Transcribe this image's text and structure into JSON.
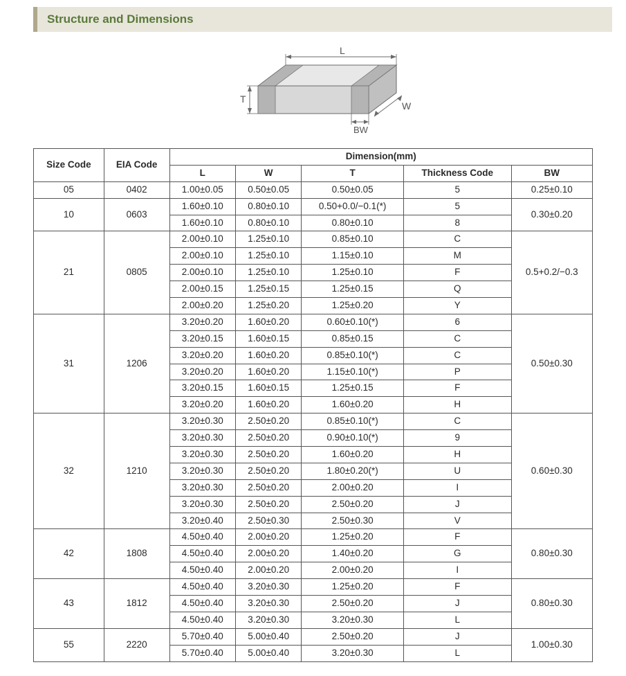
{
  "section_title": "Structure and Dimensions",
  "colors": {
    "header_bg": "#e8e6db",
    "header_border": "#b0a88c",
    "header_text": "#5a7a3a",
    "table_border": "#555555",
    "text": "#2a2a2a",
    "diagram_stroke": "#6a6a6a",
    "diagram_fill_top": "#e8e8e8",
    "diagram_fill_front": "#d8d8d8",
    "diagram_fill_side": "#c0c0c0",
    "diagram_terminal": "#b4b4b4",
    "bg": "#ffffff"
  },
  "diagram": {
    "labels": {
      "L": "L",
      "W": "W",
      "T": "T",
      "BW": "BW"
    },
    "label_font_size": 14
  },
  "table": {
    "headers": {
      "size": "Size Code",
      "eia": "EIA Code",
      "dim": "Dimension(mm)",
      "L": "L",
      "W": "W",
      "T": "T",
      "thk": "Thickness  Code",
      "bw": "BW"
    },
    "groups": [
      {
        "size": "05",
        "eia": "0402",
        "bw": "0.25±0.10",
        "rows": [
          {
            "L": "1.00±0.05",
            "W": "0.50±0.05",
            "T": "0.50±0.05",
            "thk": "5"
          }
        ]
      },
      {
        "size": "10",
        "eia": "0603",
        "bw": "0.30±0.20",
        "rows": [
          {
            "L": "1.60±0.10",
            "W": "0.80±0.10",
            "T": "0.50+0.0/−0.1(*)",
            "thk": "5"
          },
          {
            "L": "1.60±0.10",
            "W": "0.80±0.10",
            "T": "0.80±0.10",
            "thk": "8"
          }
        ]
      },
      {
        "size": "21",
        "eia": "0805",
        "bw": "0.5+0.2/−0.3",
        "rows": [
          {
            "L": "2.00±0.10",
            "W": "1.25±0.10",
            "T": "0.85±0.10",
            "thk": "C"
          },
          {
            "L": "2.00±0.10",
            "W": "1.25±0.10",
            "T": "1.15±0.10",
            "thk": "M"
          },
          {
            "L": "2.00±0.10",
            "W": "1.25±0.10",
            "T": "1.25±0.10",
            "thk": "F"
          },
          {
            "L": "2.00±0.15",
            "W": "1.25±0.15",
            "T": "1.25±0.15",
            "thk": "Q"
          },
          {
            "L": "2.00±0.20",
            "W": "1.25±0.20",
            "T": "1.25±0.20",
            "thk": "Y"
          }
        ]
      },
      {
        "size": "31",
        "eia": "1206",
        "bw": "0.50±0.30",
        "rows": [
          {
            "L": "3.20±0.20",
            "W": "1.60±0.20",
            "T": "0.60±0.10(*)",
            "thk": "6"
          },
          {
            "L": "3.20±0.15",
            "W": "1.60±0.15",
            "T": "0.85±0.15",
            "thk": "C"
          },
          {
            "L": "3.20±0.20",
            "W": "1.60±0.20",
            "T": "0.85±0.10(*)",
            "thk": "C"
          },
          {
            "L": "3.20±0.20",
            "W": "1.60±0.20",
            "T": "1.15±0.10(*)",
            "thk": "P"
          },
          {
            "L": "3.20±0.15",
            "W": "1.60±0.15",
            "T": "1.25±0.15",
            "thk": "F"
          },
          {
            "L": "3.20±0.20",
            "W": "1.60±0.20",
            "T": "1.60±0.20",
            "thk": "H"
          }
        ]
      },
      {
        "size": "32",
        "eia": "1210",
        "bw": "0.60±0.30",
        "rows": [
          {
            "L": "3.20±0.30",
            "W": "2.50±0.20",
            "T": "0.85±0.10(*)",
            "thk": "C"
          },
          {
            "L": "3.20±0.30",
            "W": "2.50±0.20",
            "T": "0.90±0.10(*)",
            "thk": "9"
          },
          {
            "L": "3.20±0.30",
            "W": "2.50±0.20",
            "T": "1.60±0.20",
            "thk": "H"
          },
          {
            "L": "3.20±0.30",
            "W": "2.50±0.20",
            "T": "1.80±0.20(*)",
            "thk": "U"
          },
          {
            "L": "3.20±0.30",
            "W": "2.50±0.20",
            "T": "2.00±0.20",
            "thk": "I"
          },
          {
            "L": "3.20±0.30",
            "W": "2.50±0.20",
            "T": "2.50±0.20",
            "thk": "J"
          },
          {
            "L": "3.20±0.40",
            "W": "2.50±0.30",
            "T": "2.50±0.30",
            "thk": "V"
          }
        ]
      },
      {
        "size": "42",
        "eia": "1808",
        "bw": "0.80±0.30",
        "rows": [
          {
            "L": "4.50±0.40",
            "W": "2.00±0.20",
            "T": "1.25±0.20",
            "thk": "F"
          },
          {
            "L": "4.50±0.40",
            "W": "2.00±0.20",
            "T": "1.40±0.20",
            "thk": "G"
          },
          {
            "L": "4.50±0.40",
            "W": "2.00±0.20",
            "T": "2.00±0.20",
            "thk": "I"
          }
        ]
      },
      {
        "size": "43",
        "eia": "1812",
        "bw": "0.80±0.30",
        "rows": [
          {
            "L": "4.50±0.40",
            "W": "3.20±0.30",
            "T": "1.25±0.20",
            "thk": "F"
          },
          {
            "L": "4.50±0.40",
            "W": "3.20±0.30",
            "T": "2.50±0.20",
            "thk": "J"
          },
          {
            "L": "4.50±0.40",
            "W": "3.20±0.30",
            "T": "3.20±0.30",
            "thk": "L"
          }
        ]
      },
      {
        "size": "55",
        "eia": "2220",
        "bw": "1.00±0.30",
        "rows": [
          {
            "L": "5.70±0.40",
            "W": "5.00±0.40",
            "T": "2.50±0.20",
            "thk": "J"
          },
          {
            "L": "5.70±0.40",
            "W": "5.00±0.40",
            "T": "3.20±0.30",
            "thk": "L"
          }
        ]
      }
    ]
  }
}
